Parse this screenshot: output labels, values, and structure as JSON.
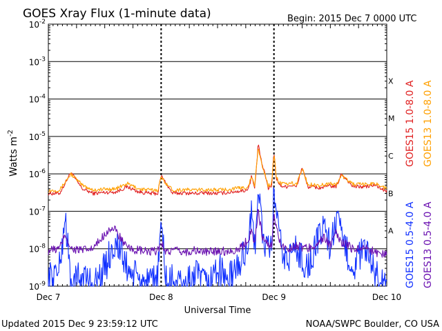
{
  "header": {
    "title": "GOES Xray Flux (1-minute data)",
    "begin": "Begin:  2015 Dec 7 0000 UTC"
  },
  "footer": {
    "updated": "Updated 2015 Dec  9 23:59:12 UTC",
    "credit": "NOAA/SWPC Boulder, CO USA"
  },
  "colors": {
    "goes15_long": "#e02020",
    "goes13_long": "#ffa000",
    "goes15_short": "#1030ff",
    "goes13_short": "#6a10b0",
    "grid": "#000000",
    "background": "#ffffff"
  },
  "chart_data": {
    "type": "line",
    "title": "GOES Xray Flux (1-minute data)",
    "xlabel": "Universal Time",
    "ylabel": "Watts m",
    "ylabel_sup": "-2",
    "yscale": "log",
    "ylim": [
      1e-09,
      0.01
    ],
    "xlim": [
      0,
      3
    ],
    "x_unit": "days since 2015 Dec 7 0000 UTC",
    "x_ticks": [
      {
        "value": 0,
        "label": "Dec 7"
      },
      {
        "value": 1,
        "label": "Dec 8"
      },
      {
        "value": 2,
        "label": "Dec 9"
      },
      {
        "value": 3,
        "label": "Dec 10"
      }
    ],
    "y_ticks": [
      {
        "value": 0.01,
        "base": "10",
        "exp": "-2"
      },
      {
        "value": 0.001,
        "base": "10",
        "exp": "-3"
      },
      {
        "value": 0.0001,
        "base": "10",
        "exp": "-4"
      },
      {
        "value": 1e-05,
        "base": "10",
        "exp": "-5"
      },
      {
        "value": 1e-06,
        "base": "10",
        "exp": "-6"
      },
      {
        "value": 1e-07,
        "base": "10",
        "exp": "-7"
      },
      {
        "value": 1e-08,
        "base": "10",
        "exp": "-8"
      },
      {
        "value": 1e-09,
        "base": "10",
        "exp": "-9"
      }
    ],
    "flare_classes": [
      {
        "label": "X",
        "value": 0.0001
      },
      {
        "label": "M",
        "value": 1e-05
      },
      {
        "label": "C",
        "value": 1e-06
      },
      {
        "label": "B",
        "value": 1e-07
      },
      {
        "label": "A",
        "value": 1e-08
      }
    ],
    "grid": true,
    "legend_position": "right, vertical",
    "series": [
      {
        "name": "GOES15 1.0-8.0 A",
        "color": "#e02020",
        "x": [
          0,
          0.1,
          0.2,
          0.3,
          0.4,
          0.5,
          0.6,
          0.7,
          0.8,
          0.9,
          0.97,
          1.0,
          1.1,
          1.2,
          1.3,
          1.4,
          1.5,
          1.6,
          1.7,
          1.75,
          1.78,
          1.8,
          1.83,
          1.86,
          1.9,
          1.92,
          1.95,
          1.98,
          2.0,
          2.02,
          2.05,
          2.1,
          2.15,
          2.2,
          2.25,
          2.3,
          2.35,
          2.4,
          2.45,
          2.5,
          2.55,
          2.6,
          2.7,
          2.8,
          2.9,
          3.0
        ],
        "y": [
          3e-07,
          3e-07,
          1.1e-06,
          4e-07,
          3e-07,
          3.2e-07,
          3.3e-07,
          4.5e-07,
          3.3e-07,
          3e-07,
          3e-07,
          9e-07,
          3e-07,
          3.1e-07,
          3e-07,
          3.1e-07,
          3e-07,
          3.2e-07,
          3.5e-07,
          3.6e-07,
          4.5e-07,
          9e-07,
          4e-07,
          6e-06,
          1.5e-06,
          1e-06,
          4e-07,
          5e-07,
          4e-06,
          8e-07,
          5e-07,
          4.5e-07,
          5e-07,
          4.5e-07,
          1.5e-06,
          4.5e-07,
          4.5e-07,
          4.2e-07,
          4.5e-07,
          4.8e-07,
          4.4e-07,
          1e-06,
          4.6e-07,
          4.5e-07,
          5e-07,
          3.3e-07
        ]
      },
      {
        "name": "GOES13 1.0-8.0 A",
        "color": "#ffa000",
        "x": [
          0,
          0.1,
          0.2,
          0.3,
          0.4,
          0.5,
          0.6,
          0.7,
          0.8,
          0.9,
          0.97,
          1.0,
          1.1,
          1.2,
          1.3,
          1.4,
          1.5,
          1.6,
          1.7,
          1.75,
          1.78,
          1.8,
          1.83,
          1.86,
          1.9,
          1.92,
          1.95,
          1.98,
          2.0,
          2.02,
          2.05,
          2.1,
          2.15,
          2.2,
          2.25,
          2.3,
          2.35,
          2.4,
          2.45,
          2.5,
          2.55,
          2.6,
          2.7,
          2.8,
          2.9,
          3.0
        ],
        "y": [
          3.6e-07,
          3.7e-07,
          1e-06,
          5e-07,
          3.7e-07,
          3.9e-07,
          4e-07,
          5.5e-07,
          4e-07,
          3.7e-07,
          3.7e-07,
          8e-07,
          3.7e-07,
          3.8e-07,
          3.7e-07,
          3.8e-07,
          3.7e-07,
          3.9e-07,
          4.2e-07,
          4.3e-07,
          5.2e-07,
          8.5e-07,
          4.8e-07,
          5e-06,
          1.4e-06,
          1e-06,
          4.8e-07,
          5.8e-07,
          3.5e-06,
          8.5e-07,
          5.8e-07,
          5.2e-07,
          5.6e-07,
          5.2e-07,
          1.4e-06,
          5.2e-07,
          5.2e-07,
          4.9e-07,
          5.2e-07,
          5.5e-07,
          5.1e-07,
          9e-07,
          5.3e-07,
          5.2e-07,
          5.6e-07,
          4e-07
        ]
      },
      {
        "name": "GOES15 0.5-4.0 A",
        "color": "#1030ff",
        "x": [
          0,
          0.1,
          0.15,
          0.2,
          0.3,
          0.4,
          0.5,
          0.55,
          0.6,
          0.7,
          0.8,
          0.9,
          0.97,
          1.0,
          1.05,
          1.1,
          1.2,
          1.3,
          1.4,
          1.5,
          1.6,
          1.7,
          1.75,
          1.78,
          1.8,
          1.83,
          1.86,
          1.9,
          1.95,
          1.98,
          2.0,
          2.05,
          2.1,
          2.2,
          2.3,
          2.4,
          2.45,
          2.5,
          2.55,
          2.6,
          2.7,
          2.8,
          2.9,
          3.0
        ],
        "y": [
          1.5e-09,
          3e-09,
          8e-08,
          1e-09,
          2e-09,
          1e-09,
          3e-09,
          8e-09,
          1.5e-08,
          3e-09,
          1.5e-09,
          1e-09,
          2e-09,
          5e-08,
          1e-09,
          1.5e-09,
          1e-09,
          2e-09,
          1e-09,
          3e-09,
          1.5e-09,
          4e-09,
          1e-08,
          2e-08,
          7e-08,
          1e-08,
          6e-07,
          2e-08,
          8e-09,
          1e-08,
          4e-07,
          1.5e-08,
          5e-09,
          1e-08,
          3e-09,
          2e-08,
          5e-08,
          1e-08,
          6e-08,
          2e-08,
          3e-09,
          1e-08,
          2e-09,
          1e-09
        ]
      },
      {
        "name": "GOES13 0.5-4.0 A",
        "color": "#6a10b0",
        "x": [
          0,
          0.1,
          0.15,
          0.2,
          0.3,
          0.4,
          0.5,
          0.55,
          0.6,
          0.7,
          0.8,
          0.9,
          0.97,
          1.0,
          1.05,
          1.1,
          1.2,
          1.3,
          1.4,
          1.5,
          1.6,
          1.7,
          1.75,
          1.78,
          1.8,
          1.83,
          1.86,
          1.9,
          1.95,
          1.98,
          2.0,
          2.05,
          2.1,
          2.2,
          2.3,
          2.4,
          2.45,
          2.5,
          2.55,
          2.6,
          2.7,
          2.8,
          2.9,
          3.0
        ],
        "y": [
          9e-09,
          1e-08,
          2.5e-08,
          1e-08,
          9e-09,
          1e-08,
          2.5e-08,
          3.5e-08,
          3e-08,
          1e-08,
          9e-09,
          8e-09,
          9e-09,
          1.5e-08,
          8e-09,
          9e-09,
          8e-09,
          9e-09,
          8e-09,
          9e-09,
          8.5e-09,
          1e-08,
          1.5e-08,
          2e-08,
          3e-08,
          1.5e-08,
          1e-07,
          2e-08,
          1.2e-08,
          1.3e-08,
          8e-08,
          1.5e-08,
          1e-08,
          1.2e-08,
          1e-08,
          1.5e-08,
          2e-08,
          1.2e-08,
          2.5e-08,
          1.5e-08,
          1e-08,
          1.1e-08,
          8e-09,
          7e-09
        ]
      }
    ]
  }
}
